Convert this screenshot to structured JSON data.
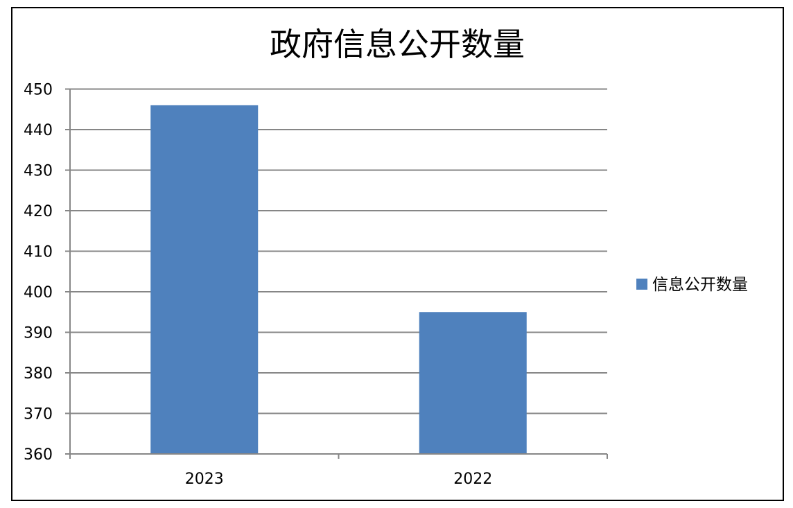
{
  "chart_data": {
    "type": "bar",
    "title": "政府信息公开数量",
    "categories": [
      "2023",
      "2022"
    ],
    "series": [
      {
        "name": "信息公开数量",
        "values": [
          446,
          395
        ],
        "color": "#4F81BD"
      }
    ],
    "ylim": [
      360,
      450
    ],
    "yticks": [
      360,
      370,
      380,
      390,
      400,
      410,
      420,
      430,
      440,
      450
    ],
    "xlabel": "",
    "ylabel": "",
    "grid": true,
    "legend_position": "right"
  }
}
